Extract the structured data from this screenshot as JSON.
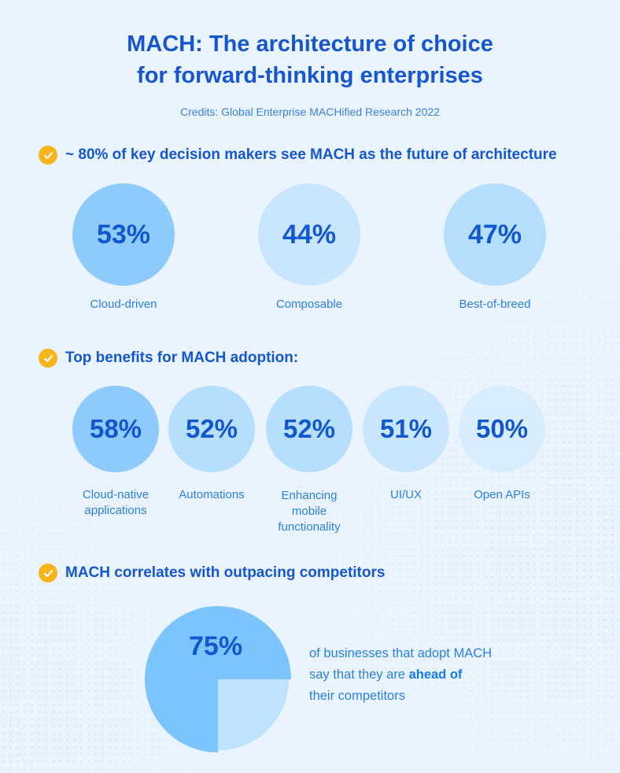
{
  "title": {
    "line1": "MACH: The architecture of choice",
    "line2": "for forward-thinking enterprises"
  },
  "credits": "Credits: Global Enterprise MACHified Research 2022",
  "colors": {
    "check": "#f8b51b",
    "title": "#1656d0",
    "circle_dark": "#8ccbfb",
    "circle_mid": "#b5dffd",
    "circle_light": "#c8e7fe",
    "circle_lighter": "#d8eefe",
    "pie_main": "#7cc4fd",
    "pie_rest": "#bfe3fe"
  },
  "sections": [
    {
      "text": "~ 80% of key decision makers see MACH as the future of architecture"
    },
    {
      "text": "Top benefits for MACH adoption:"
    },
    {
      "text": "MACH correlates with outpacing competitors"
    }
  ],
  "chart_data": [
    {
      "type": "bubble",
      "categories": [
        "Cloud-driven",
        "Composable",
        "Best-of-breed"
      ],
      "values": [
        53,
        44,
        47
      ],
      "value_labels": [
        "53%",
        "44%",
        "47%"
      ]
    },
    {
      "type": "bubble",
      "categories": [
        "Cloud-native applications",
        "Automations",
        "Enhancing mobile functionality",
        "UI/UX",
        "Open APIs"
      ],
      "values": [
        58,
        52,
        52,
        51,
        50
      ],
      "value_labels": [
        "58%",
        "52%",
        "52%",
        "51%",
        "50%"
      ]
    },
    {
      "type": "pie",
      "values": [
        75,
        25
      ],
      "value_label": "75%",
      "description": {
        "part1": "of businesses that adopt MACH",
        "part2": "say that they are ",
        "highlight": "ahead of",
        "part3": "their competitors"
      }
    }
  ]
}
